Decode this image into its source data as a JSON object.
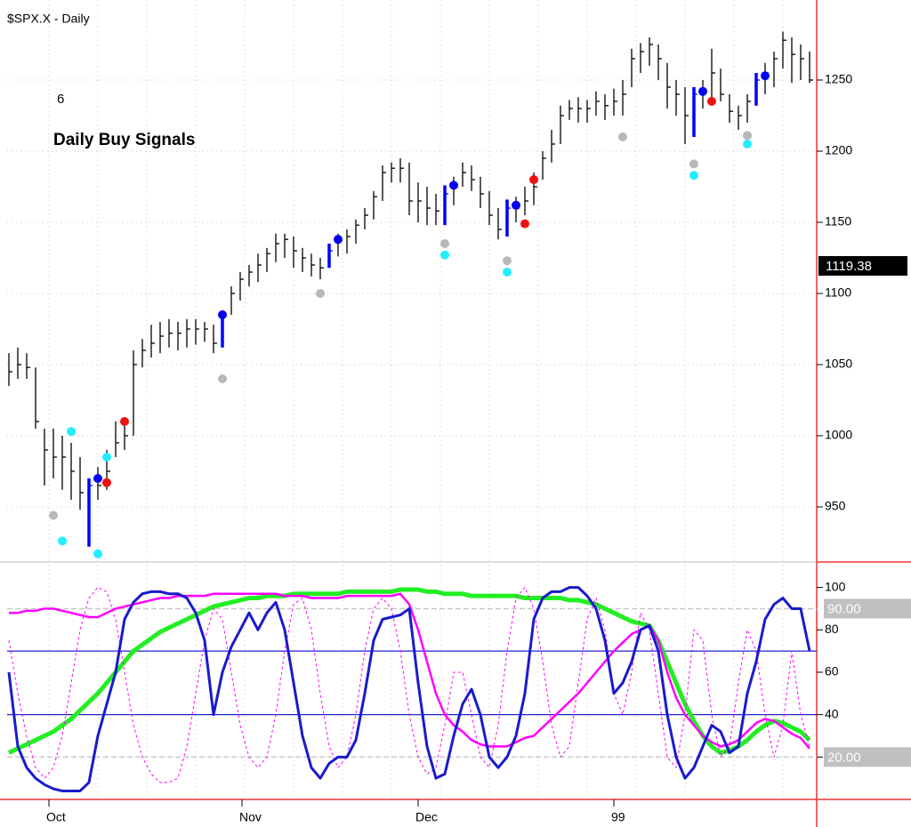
{
  "chart_data": [
    {
      "type": "ohlc",
      "title": "$SPX.X - Daily",
      "annotations": [
        "6",
        "Daily Buy Signals"
      ],
      "annotation_color": "#ee2222",
      "color": "#000000",
      "signal_color": "#0000ff",
      "signal_bars": [
        9,
        24,
        36,
        49,
        56,
        77,
        84
      ],
      "close": [
        1045,
        1050,
        1048,
        1010,
        990,
        985,
        985,
        975,
        960,
        965,
        965,
        975,
        995,
        1000,
        1050,
        1060,
        1065,
        1070,
        1072,
        1072,
        1075,
        1075,
        1075,
        1065,
        1085,
        1100,
        1110,
        1115,
        1120,
        1128,
        1135,
        1138,
        1130,
        1125,
        1120,
        1118,
        1130,
        1138,
        1140,
        1148,
        1155,
        1168,
        1185,
        1188,
        1188,
        1165,
        1165,
        1160,
        1158,
        1170,
        1175,
        1185,
        1180,
        1170,
        1155,
        1145,
        1160,
        1160,
        1165,
        1175,
        1195,
        1205,
        1225,
        1230,
        1230,
        1230,
        1235,
        1232,
        1235,
        1240,
        1265,
        1270,
        1275,
        1265,
        1245,
        1240,
        1225,
        1240,
        1242,
        1255,
        1240,
        1228,
        1225,
        1235,
        1250,
        1255,
        1265,
        1278,
        1268,
        1265,
        1250
      ],
      "high": [
        1058,
        1062,
        1058,
        1048,
        1005,
        1005,
        1000,
        995,
        985,
        970,
        978,
        990,
        1010,
        1012,
        1060,
        1068,
        1078,
        1080,
        1082,
        1080,
        1082,
        1082,
        1080,
        1078,
        1088,
        1105,
        1115,
        1120,
        1128,
        1132,
        1142,
        1142,
        1140,
        1132,
        1128,
        1125,
        1135,
        1142,
        1145,
        1152,
        1160,
        1172,
        1190,
        1192,
        1195,
        1192,
        1178,
        1175,
        1170,
        1176,
        1182,
        1192,
        1190,
        1182,
        1172,
        1160,
        1166,
        1168,
        1175,
        1185,
        1200,
        1215,
        1232,
        1236,
        1238,
        1236,
        1242,
        1240,
        1244,
        1250,
        1272,
        1276,
        1280,
        1275,
        1262,
        1250,
        1245,
        1245,
        1250,
        1272,
        1258,
        1240,
        1232,
        1240,
        1255,
        1262,
        1270,
        1284,
        1280,
        1275,
        1270
      ],
      "low": [
        1035,
        1040,
        1040,
        1005,
        965,
        970,
        962,
        955,
        948,
        922,
        955,
        962,
        985,
        990,
        1000,
        1048,
        1055,
        1058,
        1062,
        1060,
        1062,
        1064,
        1066,
        1058,
        1062,
        1085,
        1095,
        1105,
        1108,
        1115,
        1122,
        1125,
        1118,
        1115,
        1112,
        1110,
        1118,
        1126,
        1128,
        1135,
        1145,
        1152,
        1165,
        1178,
        1178,
        1155,
        1150,
        1148,
        1148,
        1148,
        1162,
        1175,
        1172,
        1160,
        1148,
        1138,
        1140,
        1150,
        1155,
        1162,
        1180,
        1192,
        1205,
        1222,
        1220,
        1220,
        1225,
        1222,
        1225,
        1225,
        1245,
        1255,
        1260,
        1250,
        1230,
        1225,
        1205,
        1210,
        1230,
        1238,
        1235,
        1220,
        1215,
        1220,
        1232,
        1240,
        1245,
        1258,
        1248,
        1250,
        1248
      ],
      "markers": [
        {
          "color": "#b8b8b8",
          "x": [
            5,
            24,
            35,
            49,
            56,
            69,
            77,
            83
          ],
          "y": [
            944,
            1040,
            1100,
            1135,
            1123,
            1210,
            1191,
            1211
          ]
        },
        {
          "color": "#22eeff",
          "x": [
            6,
            7,
            10,
            11,
            49,
            56,
            77,
            83
          ],
          "y": [
            926,
            1003,
            917,
            985,
            1127,
            1115,
            1183,
            1205
          ]
        },
        {
          "color": "#ee1111",
          "x": [
            11,
            13,
            58,
            59,
            79
          ],
          "y": [
            967,
            1010,
            1149,
            1180,
            1235
          ]
        },
        {
          "color": "#0000ee",
          "x": [
            10,
            24,
            37,
            50,
            57,
            78,
            85
          ],
          "y": [
            970,
            1085,
            1138,
            1176,
            1162,
            1242,
            1253
          ]
        }
      ],
      "ylim": [
        911.25,
        1306.25
      ],
      "yticks": [
        950,
        1000,
        1050,
        1100,
        1150,
        1200,
        1250
      ],
      "grid": true,
      "last_price": 1119.38
    },
    {
      "type": "line",
      "series": [
        {
          "color": "#22ee22",
          "width": 5,
          "values": [
            22,
            24,
            26,
            28,
            30,
            32,
            35,
            38,
            42,
            46,
            50,
            55,
            60,
            65,
            70,
            73,
            76,
            79,
            81,
            83,
            85,
            87,
            89,
            91,
            92,
            93,
            94,
            95,
            95,
            96,
            96,
            96,
            97,
            97,
            97,
            97,
            97,
            97,
            98,
            98,
            98,
            98,
            98,
            98,
            99,
            99,
            99,
            98,
            98,
            97,
            97,
            97,
            96,
            96,
            96,
            96,
            96,
            96,
            95,
            95,
            95,
            95,
            95,
            94,
            94,
            93,
            92,
            90,
            88,
            86,
            84,
            83,
            82,
            75,
            65,
            55,
            45,
            37,
            30,
            25,
            22,
            23,
            25,
            28,
            32,
            35,
            37,
            36,
            34,
            32,
            28
          ]
        },
        {
          "color": "#ff00ff",
          "width": 2.5,
          "values": [
            88,
            88,
            89,
            89,
            90,
            90,
            89,
            88,
            87,
            86,
            86,
            88,
            90,
            91,
            92,
            93,
            94,
            95,
            95,
            96,
            96,
            96,
            96,
            97,
            97,
            97,
            97,
            97,
            97,
            97,
            97,
            96,
            96,
            96,
            95,
            95,
            95,
            95,
            96,
            96,
            96,
            96,
            96,
            96,
            97,
            92,
            80,
            65,
            50,
            40,
            35,
            32,
            28,
            26,
            25,
            25,
            25,
            27,
            29,
            30,
            34,
            38,
            42,
            46,
            50,
            55,
            60,
            65,
            70,
            74,
            78,
            80,
            82,
            75,
            60,
            48,
            40,
            35,
            30,
            27,
            25,
            26,
            28,
            32,
            36,
            38,
            37,
            34,
            31,
            29,
            24
          ]
        },
        {
          "color": "#ff00ff",
          "width": 1,
          "dashed": true,
          "values": [
            75,
            50,
            30,
            15,
            10,
            15,
            30,
            55,
            80,
            95,
            100,
            98,
            85,
            60,
            35,
            20,
            12,
            8,
            8,
            10,
            25,
            50,
            75,
            90,
            85,
            60,
            35,
            20,
            15,
            20,
            40,
            70,
            92,
            95,
            80,
            50,
            25,
            15,
            20,
            40,
            70,
            90,
            95,
            90,
            70,
            40,
            20,
            12,
            15,
            35,
            60,
            60,
            40,
            20,
            15,
            35,
            70,
            95,
            100,
            90,
            65,
            35,
            20,
            25,
            55,
            85,
            95,
            80,
            50,
            40,
            60,
            88,
            80,
            50,
            20,
            15,
            40,
            80,
            75,
            40,
            20,
            25,
            55,
            80,
            70,
            40,
            20,
            35,
            70,
            40,
            25
          ]
        },
        {
          "color": "#1a1acc",
          "width": 3,
          "values": [
            60,
            25,
            15,
            10,
            7,
            5,
            4,
            4,
            4,
            8,
            30,
            45,
            60,
            85,
            93,
            97,
            98,
            98,
            97,
            97,
            95,
            88,
            75,
            40,
            60,
            72,
            80,
            88,
            80,
            88,
            93,
            80,
            55,
            30,
            15,
            10,
            17,
            20,
            20,
            28,
            50,
            75,
            85,
            86,
            87,
            90,
            55,
            25,
            10,
            12,
            30,
            45,
            52,
            40,
            20,
            15,
            20,
            30,
            50,
            85,
            95,
            98,
            98,
            100,
            100,
            96,
            90,
            75,
            50,
            55,
            65,
            80,
            82,
            70,
            40,
            20,
            10,
            15,
            25,
            35,
            32,
            22,
            25,
            50,
            65,
            85,
            92,
            95,
            90,
            90,
            70
          ]
        }
      ],
      "levels": [
        {
          "value": 70,
          "color": "#2222cc"
        },
        {
          "value": 40,
          "color": "#2222cc"
        }
      ],
      "bands": [
        {
          "value": 90,
          "label": "90.00"
        },
        {
          "value": 20,
          "label": "20.00"
        }
      ],
      "ylim": [
        0,
        112
      ],
      "yticks": [
        20,
        40,
        60,
        80,
        100
      ],
      "xticks": [
        {
          "value": 4.5,
          "label": "Oct"
        },
        {
          "value": 26.2,
          "label": "Nov"
        },
        {
          "value": 46,
          "label": "Dec"
        },
        {
          "value": 68,
          "label": "99"
        }
      ]
    }
  ]
}
